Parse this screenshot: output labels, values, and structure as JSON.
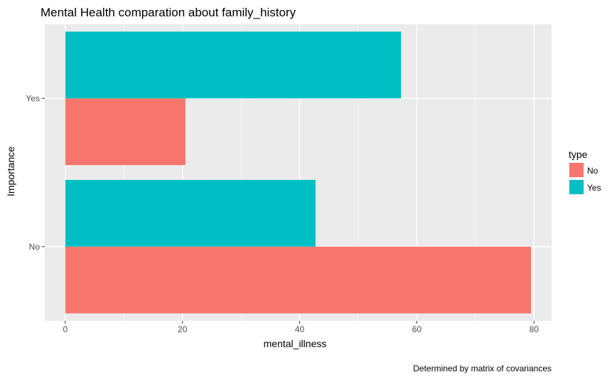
{
  "chart_data": {
    "type": "bar",
    "orientation": "horizontal",
    "title": "Mental Health comparation about family_history",
    "xlabel": "mental_illness",
    "ylabel": "Importance",
    "caption": "Determined by matrix of covariances",
    "categories": [
      "No",
      "Yes"
    ],
    "xlim": [
      -3.5,
      83
    ],
    "x_ticks": [
      0,
      20,
      40,
      60,
      80
    ],
    "x_tick_labels": [
      "0",
      "20",
      "40",
      "60",
      "80"
    ],
    "legend": {
      "title": "type",
      "position": "right"
    },
    "series": [
      {
        "name": "No",
        "color": "#F8766D",
        "values": [
          79.5,
          20.5
        ]
      },
      {
        "name": "Yes",
        "color": "#00BFC4",
        "values": [
          42.7,
          57.3
        ]
      }
    ],
    "grid": true,
    "panel_color": "#EBEBEB"
  }
}
